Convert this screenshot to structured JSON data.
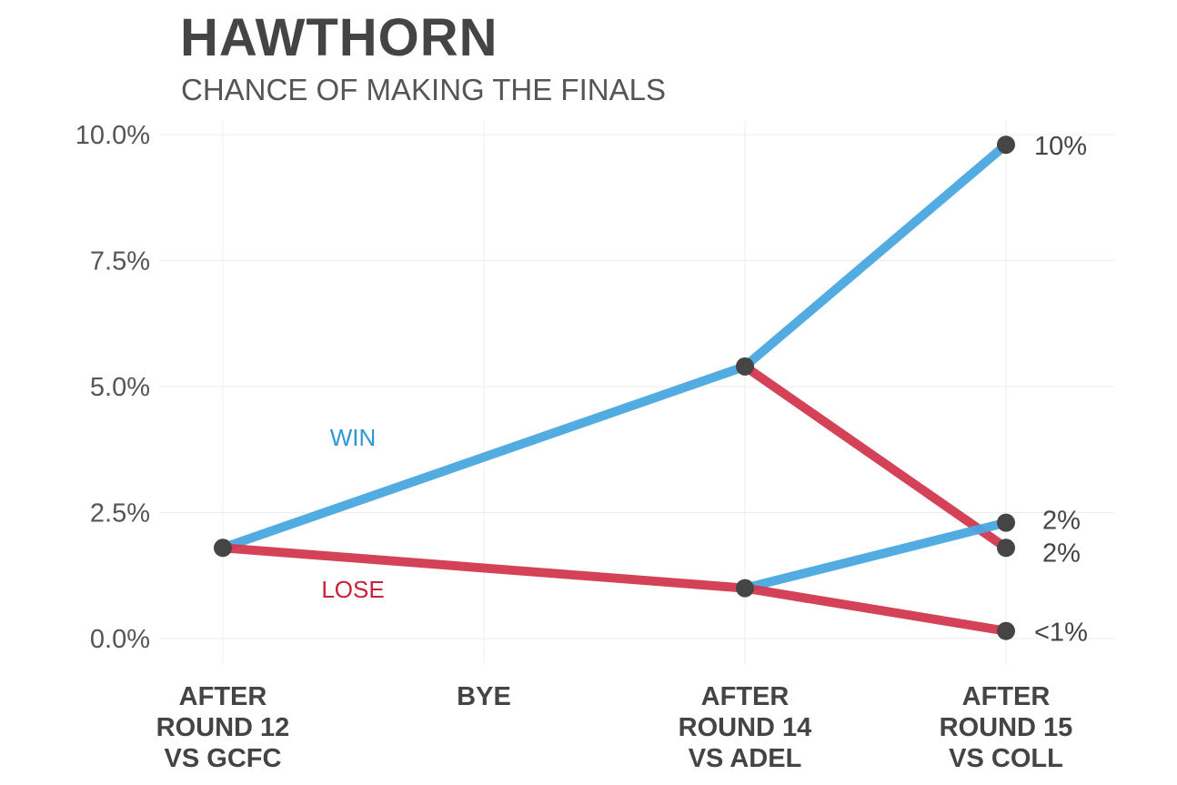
{
  "title": "HAWTHORN",
  "subtitle": "CHANCE OF MAKING THE FINALS",
  "chart_data": {
    "type": "line",
    "title": "HAWTHORN",
    "subtitle": "CHANCE OF MAKING THE FINALS",
    "categories": [
      [
        "AFTER",
        "ROUND 12",
        "VS GCFC"
      ],
      [
        "BYE"
      ],
      [
        "AFTER",
        "ROUND 14",
        "VS ADEL"
      ],
      [
        "AFTER",
        "ROUND 15",
        "VS COLL"
      ]
    ],
    "yticks": [
      "0.0%",
      "2.5%",
      "5.0%",
      "7.5%",
      "10.0%"
    ],
    "ylim": [
      -0.7,
      10.3
    ],
    "colors": {
      "win": "#4aa8e0",
      "lose": "#d1384f",
      "point": "#454545",
      "grid": "#ececec"
    },
    "series_labels": [
      {
        "text": "WIN",
        "color": "#2f97d6"
      },
      {
        "text": "LOSE",
        "color": "#c8213a"
      }
    ],
    "paths": [
      {
        "outcome": "win",
        "points": [
          [
            0,
            1.8
          ],
          [
            2,
            5.4
          ]
        ]
      },
      {
        "outcome": "lose",
        "points": [
          [
            0,
            1.8
          ],
          [
            2,
            1.0
          ]
        ]
      },
      {
        "outcome": "win",
        "points": [
          [
            2,
            5.4
          ],
          [
            3,
            9.8
          ]
        ]
      },
      {
        "outcome": "lose",
        "points": [
          [
            2,
            5.4
          ],
          [
            3,
            1.8
          ]
        ]
      },
      {
        "outcome": "win",
        "points": [
          [
            2,
            1.0
          ],
          [
            3,
            2.3
          ]
        ]
      },
      {
        "outcome": "lose",
        "points": [
          [
            2,
            1.0
          ],
          [
            3,
            0.15
          ]
        ]
      }
    ],
    "points": [
      [
        0,
        1.8
      ],
      [
        2,
        5.4
      ],
      [
        2,
        1.0
      ],
      [
        3,
        9.8
      ],
      [
        3,
        2.3
      ],
      [
        3,
        1.8
      ],
      [
        3,
        0.15
      ]
    ],
    "end_labels": [
      {
        "text": "10%",
        "y": 9.8
      },
      {
        "text": "2%",
        "y": 2.3
      },
      {
        "text": "2%",
        "y": 1.8
      },
      {
        "text": "<1%",
        "y": 0.15
      }
    ]
  }
}
